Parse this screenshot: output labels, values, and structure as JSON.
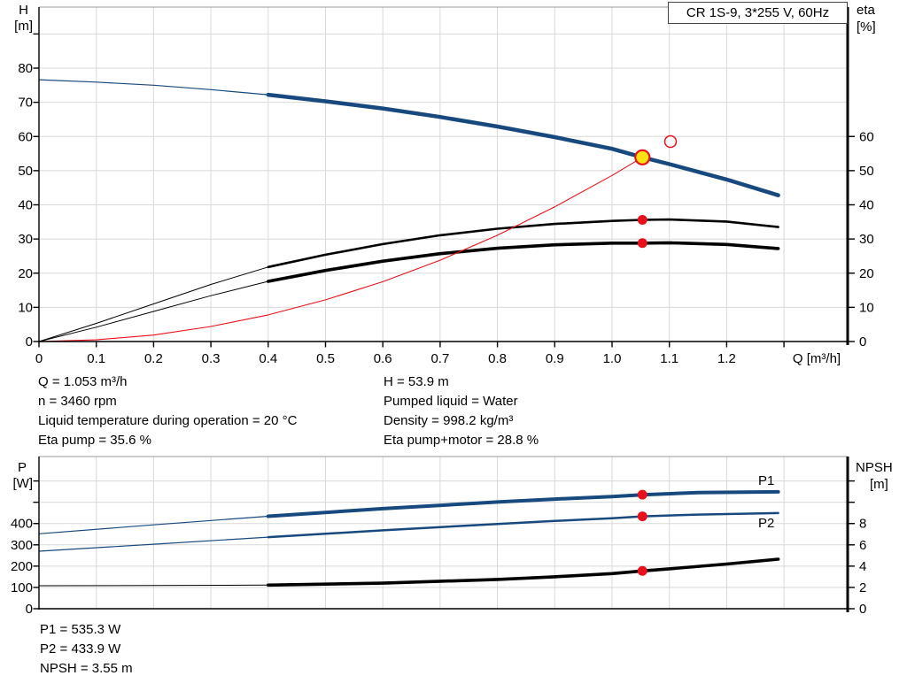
{
  "palette": {
    "navy": "#17497e",
    "red": "#e8101a",
    "yellow": "#ffe013",
    "grid": "#d8d8d8",
    "axis": "#000000",
    "border": "#999999",
    "blue_label": "#1f5caa"
  },
  "title_box": {
    "label": "CR 1S-9, 3*255 V, 60Hz"
  },
  "info_top": {
    "col1": [
      "Q = 1.053 m³/h",
      "n = 3460 rpm",
      "Liquid temperature during operation = 20 °C",
      "Eta pump = 35.6 %"
    ],
    "col2": [
      "H = 53.9 m",
      "Pumped liquid = Water",
      "Density = 998.2 kg/m³",
      "Eta pump+motor = 28.8 %"
    ]
  },
  "info_bottom": [
    "P1 = 535.3 W",
    "P2 = 433.9 W",
    "NPSH = 3.55 m"
  ],
  "chart_data": [
    {
      "type": "line",
      "title": "CR 1S-9, 3*255 V, 60Hz",
      "xlabel": "Q [m³/h]",
      "ylabel_left": [
        "H",
        "[m]"
      ],
      "ylabel_right": [
        "eta",
        "[%]"
      ],
      "xlim": [
        0,
        1.41
      ],
      "ylim_left": [
        0,
        98
      ],
      "ylim_right": [
        0,
        98
      ],
      "grid": true,
      "x_ticks": [
        0,
        0.1,
        0.2,
        0.3,
        0.4,
        0.5,
        0.6,
        0.7,
        0.8,
        0.9,
        1.0,
        1.1,
        1.2,
        1.3
      ],
      "x_tick_labels": [
        "0",
        "0.1",
        "0.2",
        "0.3",
        "0.4",
        "0.5",
        "0.6",
        "0.7",
        "0.8",
        "0.9",
        "1.0",
        "1.1",
        "1.2",
        ""
      ],
      "y_ticks_left": [
        0,
        10,
        20,
        30,
        40,
        50,
        60,
        70,
        80,
        90
      ],
      "y_tick_labels_left": [
        "0",
        "10",
        "20",
        "30",
        "40",
        "50",
        "60",
        "70",
        "80",
        ""
      ],
      "y_ticks_right": [
        0,
        10,
        20,
        30,
        40,
        50,
        60
      ],
      "y_tick_labels_right": [
        "0",
        "10",
        "20",
        "30",
        "40",
        "50",
        "60"
      ],
      "series": [
        {
          "name": "head-curve",
          "axis": "left",
          "color": "#17497e",
          "segments": [
            {
              "width": 1.2,
              "points": [
                [
                  0,
                  76.6
                ],
                [
                  0.1,
                  75.9
                ],
                [
                  0.2,
                  75.0
                ],
                [
                  0.3,
                  73.7
                ],
                [
                  0.4,
                  72.2
                ]
              ]
            },
            {
              "width": 4.5,
              "points": [
                [
                  0.4,
                  72.2
                ],
                [
                  0.5,
                  70.3
                ],
                [
                  0.6,
                  68.2
                ],
                [
                  0.7,
                  65.7
                ],
                [
                  0.8,
                  62.9
                ],
                [
                  0.9,
                  59.8
                ],
                [
                  1.0,
                  56.4
                ],
                [
                  1.053,
                  53.9
                ],
                [
                  1.1,
                  51.9
                ],
                [
                  1.2,
                  47.4
                ],
                [
                  1.29,
                  42.8
                ]
              ]
            }
          ]
        },
        {
          "name": "eta-pump-curve",
          "axis": "right",
          "color": "#000000",
          "segments": [
            {
              "width": 1.0,
              "points": [
                [
                  0,
                  0
                ],
                [
                  0.1,
                  5.3
                ],
                [
                  0.2,
                  11.0
                ],
                [
                  0.3,
                  16.7
                ],
                [
                  0.4,
                  21.8
                ]
              ]
            },
            {
              "width": 2.6,
              "points": [
                [
                  0.4,
                  21.8
                ],
                [
                  0.5,
                  25.4
                ],
                [
                  0.6,
                  28.5
                ],
                [
                  0.7,
                  31.1
                ],
                [
                  0.8,
                  33.0
                ],
                [
                  0.9,
                  34.4
                ],
                [
                  1.0,
                  35.3
                ],
                [
                  1.053,
                  35.6
                ],
                [
                  1.1,
                  35.7
                ],
                [
                  1.2,
                  35.1
                ],
                [
                  1.29,
                  33.5
                ]
              ]
            }
          ]
        },
        {
          "name": "eta-pump-motor-curve",
          "axis": "right",
          "color": "#000000",
          "segments": [
            {
              "width": 1.0,
              "points": [
                [
                  0,
                  0
                ],
                [
                  0.1,
                  4.2
                ],
                [
                  0.2,
                  8.8
                ],
                [
                  0.3,
                  13.4
                ],
                [
                  0.4,
                  17.6
                ]
              ]
            },
            {
              "width": 3.6,
              "points": [
                [
                  0.4,
                  17.6
                ],
                [
                  0.5,
                  20.8
                ],
                [
                  0.6,
                  23.5
                ],
                [
                  0.7,
                  25.7
                ],
                [
                  0.8,
                  27.3
                ],
                [
                  0.9,
                  28.3
                ],
                [
                  1.0,
                  28.8
                ],
                [
                  1.053,
                  28.8
                ],
                [
                  1.1,
                  28.9
                ],
                [
                  1.2,
                  28.4
                ],
                [
                  1.29,
                  27.2
                ]
              ]
            }
          ]
        },
        {
          "name": "system-curve",
          "axis": "left",
          "color": "#e8101a",
          "segments": [
            {
              "width": 1.1,
              "points": [
                [
                  0,
                  0
                ],
                [
                  0.1,
                  0.5
                ],
                [
                  0.2,
                  1.9
                ],
                [
                  0.3,
                  4.4
                ],
                [
                  0.4,
                  7.8
                ],
                [
                  0.5,
                  12.2
                ],
                [
                  0.6,
                  17.5
                ],
                [
                  0.7,
                  23.8
                ],
                [
                  0.8,
                  31.1
                ],
                [
                  0.9,
                  39.4
                ],
                [
                  1.0,
                  48.6
                ],
                [
                  1.053,
                  53.9
                ]
              ]
            }
          ]
        }
      ],
      "markers": [
        {
          "name": "duty-point",
          "kind": "duty",
          "axis": "left",
          "q": 1.053,
          "value": 53.9
        },
        {
          "name": "requested-duty-point",
          "kind": "hollow",
          "axis": "left",
          "q": 1.102,
          "value": 58.5
        },
        {
          "name": "eta-pump-point",
          "kind": "dot",
          "axis": "right",
          "q": 1.053,
          "value": 35.6
        },
        {
          "name": "eta-pump-motor-point",
          "kind": "dot",
          "axis": "right",
          "q": 1.053,
          "value": 28.8
        }
      ],
      "labels": []
    },
    {
      "type": "line",
      "title": "",
      "xlabel": "",
      "ylabel_left": [
        "P",
        "[W]"
      ],
      "ylabel_right": [
        "NPSH",
        "[m]"
      ],
      "xlim": [
        0,
        1.41
      ],
      "ylim_left": [
        0,
        715
      ],
      "ylim_right": [
        0,
        14.3
      ],
      "grid": true,
      "y_ticks_left": [
        0,
        100,
        200,
        300,
        400,
        500,
        600
      ],
      "y_tick_labels_left": [
        "0",
        "100",
        "200",
        "300",
        "400",
        "",
        ""
      ],
      "y_ticks_right": [
        0,
        2,
        4,
        6,
        8,
        10,
        12
      ],
      "y_tick_labels_right": [
        "0",
        "2",
        "4",
        "6",
        "8",
        "",
        ""
      ],
      "series": [
        {
          "name": "p1-curve",
          "axis": "left",
          "color": "#17497e",
          "segments": [
            {
              "width": 1.2,
              "points": [
                [
                  0,
                  352
                ],
                [
                  0.2,
                  394
                ],
                [
                  0.4,
                  434
                ]
              ]
            },
            {
              "width": 4.0,
              "points": [
                [
                  0.4,
                  434
                ],
                [
                  0.6,
                  470
                ],
                [
                  0.8,
                  501
                ],
                [
                  0.9,
                  515
                ],
                [
                  1.0,
                  527
                ],
                [
                  1.053,
                  535.3
                ],
                [
                  1.15,
                  545
                ],
                [
                  1.29,
                  549
                ]
              ]
            }
          ]
        },
        {
          "name": "p2-curve",
          "axis": "left",
          "color": "#17497e",
          "segments": [
            {
              "width": 1.2,
              "points": [
                [
                  0,
                  270
                ],
                [
                  0.2,
                  303
                ],
                [
                  0.4,
                  336
                ]
              ]
            },
            {
              "width": 2.5,
              "points": [
                [
                  0.4,
                  336
                ],
                [
                  0.6,
                  368
                ],
                [
                  0.8,
                  398
                ],
                [
                  0.9,
                  412
                ],
                [
                  1.0,
                  425
                ],
                [
                  1.053,
                  433.9
                ],
                [
                  1.15,
                  442
                ],
                [
                  1.29,
                  449
                ]
              ]
            }
          ]
        },
        {
          "name": "npsh-curve",
          "axis": "right",
          "color": "#000000",
          "segments": [
            {
              "width": 1.0,
              "points": [
                [
                  0,
                  2.16
                ],
                [
                  0.2,
                  2.18
                ],
                [
                  0.4,
                  2.22
                ]
              ]
            },
            {
              "width": 3.6,
              "points": [
                [
                  0.4,
                  2.22
                ],
                [
                  0.6,
                  2.4
                ],
                [
                  0.8,
                  2.75
                ],
                [
                  0.9,
                  3.0
                ],
                [
                  1.0,
                  3.3
                ],
                [
                  1.053,
                  3.55
                ],
                [
                  1.1,
                  3.75
                ],
                [
                  1.2,
                  4.2
                ],
                [
                  1.29,
                  4.65
                ]
              ]
            }
          ]
        }
      ],
      "markers": [
        {
          "name": "p1-point",
          "kind": "dot",
          "axis": "left",
          "q": 1.053,
          "value": 535.3
        },
        {
          "name": "p2-point",
          "kind": "dot",
          "axis": "left",
          "q": 1.053,
          "value": 433.9
        },
        {
          "name": "npsh-point",
          "kind": "dot",
          "axis": "right",
          "q": 1.053,
          "value": 3.55
        }
      ],
      "labels": [
        {
          "text": "P1",
          "q": 1.255,
          "value": 582,
          "axis": "left"
        },
        {
          "text": "P2",
          "q": 1.255,
          "value": 382,
          "axis": "left"
        }
      ]
    }
  ]
}
